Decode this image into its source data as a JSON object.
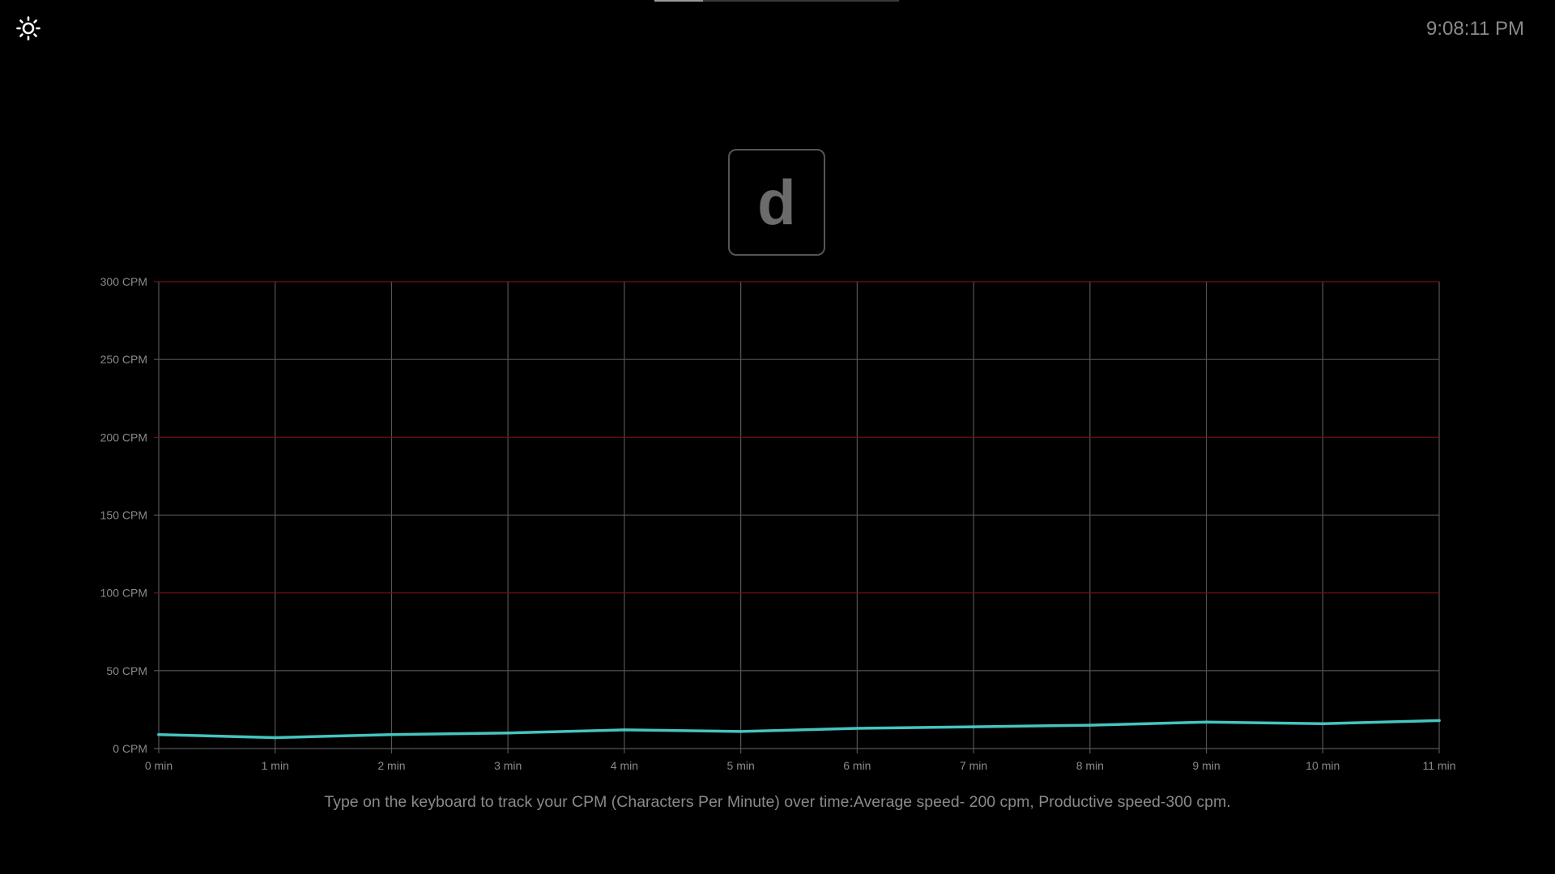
{
  "header": {
    "theme_icon": "sun-icon",
    "clock": "9:08:11 PM",
    "indicator_progress": 0.2
  },
  "current_key": "d",
  "colors": {
    "background": "#000000",
    "grid": "#555555",
    "threshold_grid": "#7a0f14",
    "line": "#45c4c0",
    "text": "#8a8a8a"
  },
  "chart_data": {
    "type": "line",
    "title": "",
    "xlabel": "",
    "ylabel": "",
    "x": [
      0,
      1,
      2,
      3,
      4,
      5,
      6,
      7,
      8,
      9,
      10,
      11
    ],
    "x_tick_labels": [
      "0 min",
      "1 min",
      "2 min",
      "3 min",
      "4 min",
      "5 min",
      "6 min",
      "7 min",
      "8 min",
      "9 min",
      "10 min",
      "11 min"
    ],
    "y_ticks": [
      0,
      50,
      100,
      150,
      200,
      250,
      300
    ],
    "y_tick_labels": [
      "0 CPM",
      "50 CPM",
      "100 CPM",
      "150 CPM",
      "200 CPM",
      "250 CPM",
      "300 CPM"
    ],
    "highlighted_gridlines": [
      100,
      200,
      300
    ],
    "ylim": [
      0,
      300
    ],
    "xlim": [
      0,
      11
    ],
    "grid": true,
    "legend": "none",
    "series": [
      {
        "values": [
          9,
          7,
          9,
          10,
          12,
          11,
          13,
          14,
          15,
          17,
          16,
          18
        ]
      }
    ]
  },
  "caption": "Type on the keyboard to track your CPM (Characters Per Minute) over time:Average speed- 200 cpm, Productive speed-300 cpm."
}
